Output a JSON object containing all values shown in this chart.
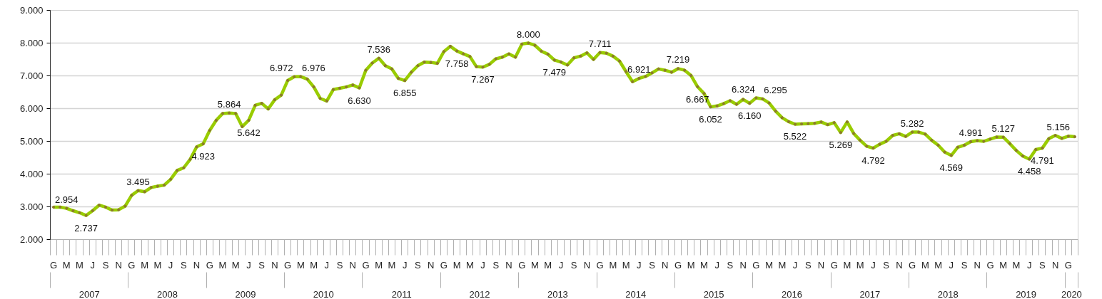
{
  "chart_data": {
    "type": "line",
    "categories": [
      "G",
      null,
      "M",
      null,
      "M",
      null,
      "J",
      null,
      "S",
      null,
      "N",
      null,
      "G",
      null,
      "M",
      null,
      "M",
      null,
      "J",
      null,
      "S",
      null,
      "N",
      null,
      "G",
      null,
      "M",
      null,
      "M",
      null,
      "J",
      null,
      "S",
      null,
      "N",
      null,
      "G",
      null,
      "M",
      null,
      "M",
      null,
      "J",
      null,
      "S",
      null,
      "N",
      null,
      "G",
      null,
      "M",
      null,
      "M",
      null,
      "J",
      null,
      "S",
      null,
      "N",
      null,
      "G",
      null,
      "M",
      null,
      "M",
      null,
      "J",
      null,
      "S",
      null,
      "N",
      null,
      "G",
      null,
      "M",
      null,
      "M",
      null,
      "J",
      null,
      "S",
      null,
      "N",
      null,
      "G",
      null,
      "M",
      null,
      "M",
      null,
      "J",
      null,
      "S",
      null,
      "N",
      null,
      "G",
      null,
      "M",
      null,
      "M",
      null,
      "J",
      null,
      "S",
      null,
      "N",
      null,
      "G",
      null,
      "M",
      null,
      "M",
      null,
      "J",
      null,
      "S",
      null,
      "N",
      null,
      "G",
      null,
      "M",
      null,
      "M",
      null,
      "J",
      null,
      "S",
      null,
      "N",
      null,
      "G",
      null,
      "M",
      null,
      "M",
      null,
      "J",
      null,
      "S",
      null,
      "N",
      null,
      "G",
      null,
      "M",
      null,
      "M",
      null,
      "J",
      null,
      "S",
      null,
      "N",
      null,
      "G",
      null
    ],
    "series": [
      {
        "color": "#99cc00",
        "values": [
          2990,
          2990,
          2954,
          2880,
          2820,
          2737,
          2880,
          3050,
          2990,
          2900,
          2910,
          3020,
          3350,
          3495,
          3460,
          3590,
          3630,
          3660,
          3840,
          4110,
          4190,
          4450,
          4830,
          4923,
          5330,
          5640,
          5850,
          5864,
          5850,
          5450,
          5642,
          6100,
          6160,
          5990,
          6270,
          6410,
          6860,
          6972,
          6976,
          6900,
          6660,
          6310,
          6230,
          6580,
          6620,
          6660,
          6720,
          6630,
          7170,
          7390,
          7536,
          7310,
          7210,
          6920,
          6855,
          7110,
          7310,
          7420,
          7410,
          7380,
          7740,
          7900,
          7758,
          7670,
          7590,
          7280,
          7267,
          7350,
          7520,
          7570,
          7670,
          7570,
          7970,
          8000,
          7930,
          7750,
          7660,
          7479,
          7420,
          7330,
          7550,
          7600,
          7700,
          7500,
          7711,
          7690,
          7600,
          7450,
          7130,
          6820,
          6921,
          6980,
          7090,
          7210,
          7170,
          7110,
          7219,
          7170,
          7010,
          6667,
          6460,
          6052,
          6080,
          6150,
          6240,
          6130,
          6280,
          6160,
          6324,
          6295,
          6170,
          5920,
          5720,
          5600,
          5522,
          5530,
          5540,
          5550,
          5590,
          5510,
          5570,
          5269,
          5590,
          5240,
          5030,
          4850,
          4792,
          4910,
          5000,
          5180,
          5230,
          5150,
          5282,
          5280,
          5220,
          5030,
          4880,
          4670,
          4569,
          4820,
          4880,
          4991,
          5020,
          5000,
          5070,
          5130,
          5127,
          4930,
          4720,
          4550,
          4458,
          4750,
          4791,
          5080,
          5180,
          5090,
          5156,
          5140
        ],
        "value_labels": [
          null,
          null,
          "2.954",
          null,
          null,
          "2.737",
          null,
          null,
          null,
          null,
          null,
          null,
          null,
          "3.495",
          null,
          null,
          null,
          null,
          null,
          null,
          null,
          null,
          null,
          "4.923",
          null,
          null,
          null,
          "5.864",
          null,
          null,
          "5.642",
          null,
          null,
          null,
          null,
          null,
          null,
          "6.972",
          "6.976",
          null,
          null,
          null,
          null,
          null,
          null,
          null,
          null,
          "6.630",
          null,
          null,
          "7.536",
          null,
          null,
          null,
          "6.855",
          null,
          null,
          null,
          null,
          null,
          null,
          null,
          "7.758",
          null,
          null,
          null,
          "7.267",
          null,
          null,
          null,
          null,
          null,
          null,
          "8.000",
          null,
          null,
          null,
          "7.479",
          null,
          null,
          null,
          null,
          null,
          null,
          "7.711",
          null,
          null,
          null,
          null,
          null,
          "6.921",
          null,
          null,
          null,
          null,
          null,
          "7.219",
          null,
          null,
          "6.667",
          null,
          "6.052",
          null,
          null,
          null,
          null,
          null,
          "6.160",
          "6.324",
          "6.295",
          null,
          null,
          null,
          null,
          "5.522",
          null,
          null,
          null,
          null,
          null,
          null,
          "5.269",
          null,
          null,
          null,
          null,
          "4.792",
          null,
          null,
          null,
          null,
          null,
          "5.282",
          null,
          null,
          null,
          null,
          null,
          "4.569",
          null,
          null,
          "4.991",
          null,
          null,
          null,
          null,
          "5.127",
          null,
          null,
          null,
          "4.458",
          null,
          "4.791",
          null,
          null,
          null,
          "5.156",
          null
        ]
      }
    ],
    "annotations": [
      "2007",
      "2008",
      "2009",
      "2010",
      "2011",
      "2012",
      "2013",
      "2014",
      "2015",
      "2016",
      "2017",
      "2018",
      "2019",
      "2020"
    ],
    "ylim": [
      2000,
      9000
    ],
    "yticks": [
      {
        "value": 2000,
        "label": "2.000"
      },
      {
        "value": 3000,
        "label": "3.000"
      },
      {
        "value": 4000,
        "label": "4.000"
      },
      {
        "value": 5000,
        "label": "5.000"
      },
      {
        "value": 6000,
        "label": "6.000"
      },
      {
        "value": 7000,
        "label": "7.000"
      },
      {
        "value": 8000,
        "label": "8.000"
      },
      {
        "value": 9000,
        "label": "9.000"
      }
    ],
    "grid": "y",
    "marker": "circle",
    "line_style": "solid"
  }
}
